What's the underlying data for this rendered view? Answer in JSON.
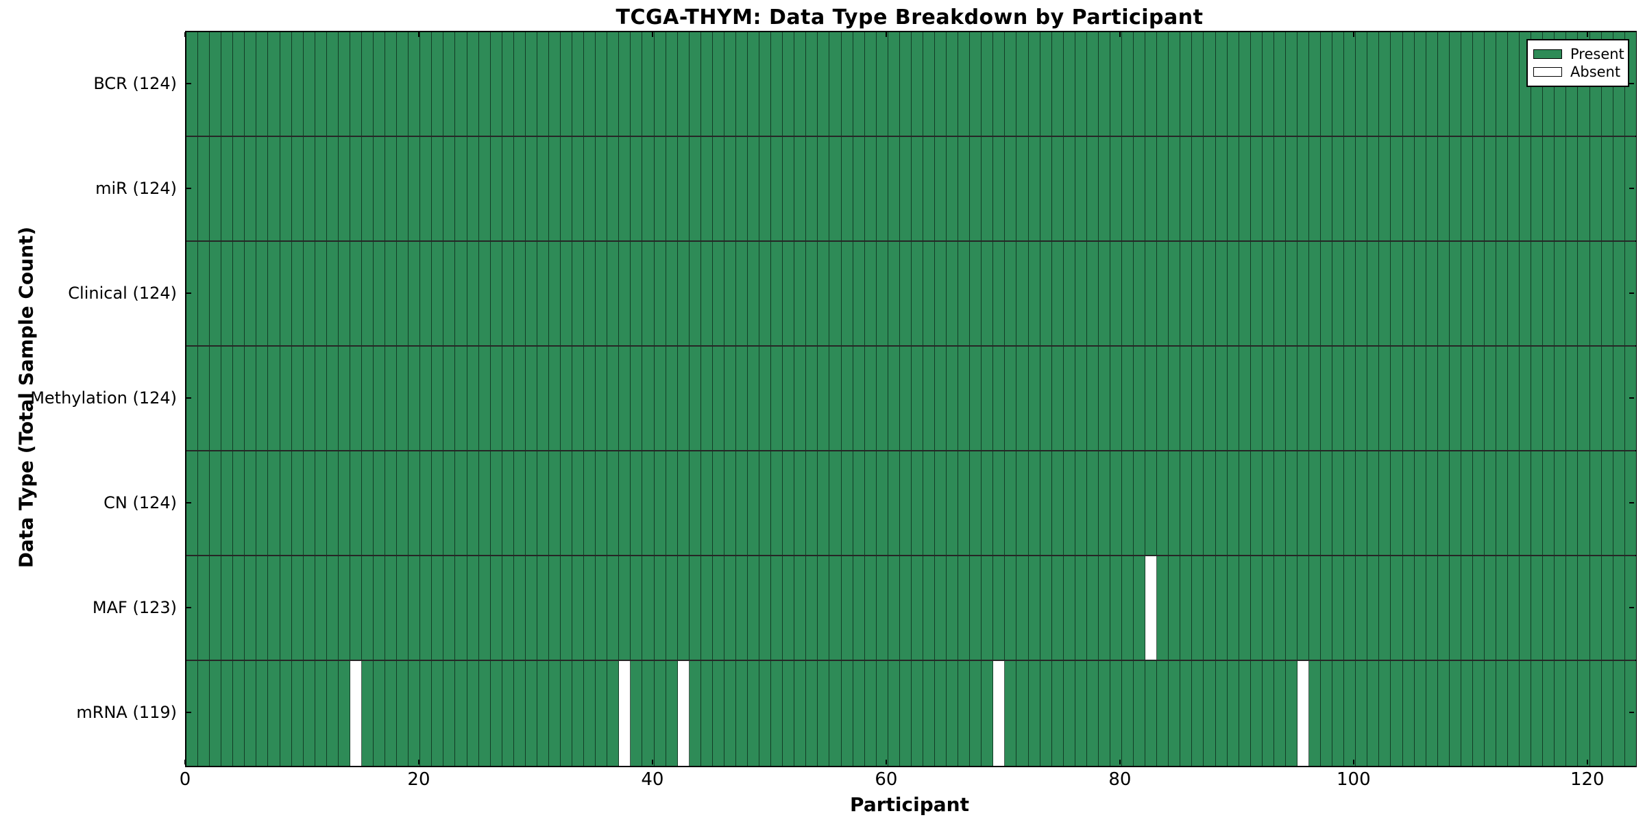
{
  "chart_data": {
    "type": "heatmap",
    "title": "TCGA-THYM: Data Type Breakdown by Participant",
    "xlabel": "Participant",
    "ylabel": "Data Type (Total Sample Count)",
    "xlim": [
      0,
      124
    ],
    "n_participants": 124,
    "x_ticks": [
      0,
      20,
      40,
      60,
      80,
      100,
      120
    ],
    "grid": false,
    "legend_position": "upper right",
    "rows": [
      {
        "label": "BCR (124)",
        "name": "BCR",
        "total": 124,
        "absent_participants": []
      },
      {
        "label": "miR (124)",
        "name": "miR",
        "total": 124,
        "absent_participants": []
      },
      {
        "label": "Clinical (124)",
        "name": "Clinical",
        "total": 124,
        "absent_participants": []
      },
      {
        "label": "Methylation (124)",
        "name": "Methylation",
        "total": 124,
        "absent_participants": []
      },
      {
        "label": "CN (124)",
        "name": "CN",
        "total": 124,
        "absent_participants": []
      },
      {
        "label": "MAF (123)",
        "name": "MAF",
        "total": 123,
        "absent_participants": [
          82
        ]
      },
      {
        "label": "mRNA (119)",
        "name": "mRNA",
        "total": 119,
        "absent_participants": [
          14,
          37,
          42,
          69,
          95
        ]
      }
    ],
    "legend": [
      {
        "label": "Present",
        "color": "#2E8B57"
      },
      {
        "label": "Absent",
        "color": "#FFFFFF"
      }
    ],
    "colors": {
      "present": "#2E8B57",
      "absent": "#FFFFFF",
      "cell_edge": "rgba(8,28,18,0.72)",
      "row_divider": "rgba(0,0,0,0.85)",
      "spine": "#000000"
    }
  }
}
